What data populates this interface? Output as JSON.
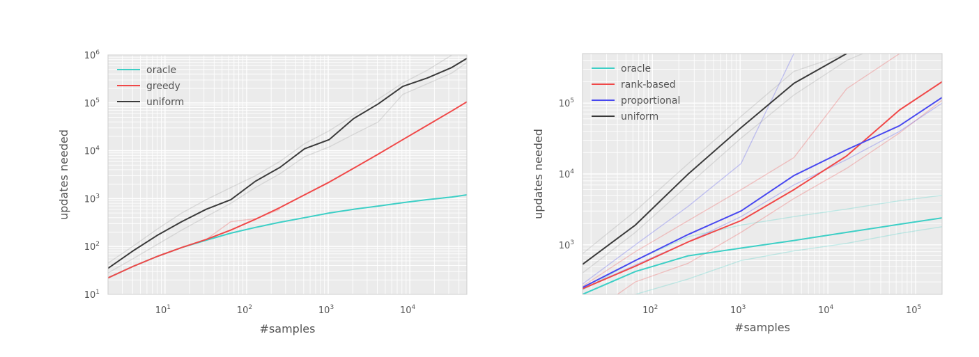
{
  "chart_data": [
    {
      "type": "line",
      "xlabel": "#samples",
      "ylabel": "updates needed",
      "x_scale": "log",
      "y_scale": "log",
      "xlim": [
        2,
        50000
      ],
      "ylim": [
        10,
        1000000
      ],
      "xticks": [
        10,
        100,
        1000,
        10000
      ],
      "yticks": [
        10,
        100,
        1000,
        10000,
        100000,
        1000000
      ],
      "grid": true,
      "legend": "top-left",
      "series": [
        {
          "name": "oracle",
          "color": "#3dcfc6",
          "style": "main",
          "x": [
            2,
            4,
            8,
            16,
            32,
            64,
            128,
            256,
            512,
            1024,
            2048,
            4096,
            8192,
            16384,
            32768,
            50000
          ],
          "y": [
            22,
            38,
            62,
            95,
            135,
            190,
            250,
            320,
            400,
            500,
            600,
            700,
            820,
            950,
            1080,
            1200
          ]
        },
        {
          "name": "greedy",
          "color": "#f04848",
          "style": "main",
          "x": [
            2,
            4,
            8,
            16,
            32,
            64,
            128,
            256,
            512,
            1024,
            2048,
            4096,
            8192,
            16384,
            32768,
            50000
          ],
          "y": [
            22,
            38,
            62,
            95,
            140,
            220,
            370,
            650,
            1200,
            2200,
            4300,
            8500,
            17000,
            34000,
            68000,
            105000
          ]
        },
        {
          "name": "",
          "color": "#f04848",
          "style": "faint",
          "x": [
            2,
            4,
            8,
            16,
            32,
            64,
            128,
            256
          ],
          "y": [
            22,
            38,
            62,
            95,
            140,
            330,
            380,
            600
          ]
        },
        {
          "name": "uniform",
          "color": "#3a3a3a",
          "style": "main",
          "x": [
            2,
            4,
            8,
            16,
            32,
            64,
            128,
            256,
            512,
            1024,
            2048,
            4096,
            8192,
            16384,
            32768,
            50000
          ],
          "y": [
            35,
            80,
            170,
            330,
            600,
            950,
            2300,
            4500,
            11000,
            17000,
            47000,
            95000,
            220000,
            330000,
            550000,
            850000
          ]
        },
        {
          "name": "",
          "color": "#9a9a9a",
          "style": "faint",
          "x": [
            2,
            4,
            8,
            16,
            32,
            64,
            128,
            256,
            512,
            1024,
            2048,
            4096,
            8192,
            16384,
            32768
          ],
          "y": [
            45,
            100,
            230,
            500,
            950,
            1700,
            3000,
            6000,
            14000,
            26000,
            55000,
            120000,
            260000,
            480000,
            1000000
          ]
        },
        {
          "name": "",
          "color": "#9a9a9a",
          "style": "faint",
          "x": [
            2,
            4,
            8,
            16,
            32,
            64,
            128,
            256,
            512,
            1024,
            2048,
            4096,
            8192,
            16384,
            32768,
            50000
          ],
          "y": [
            28,
            55,
            110,
            220,
            420,
            800,
            1700,
            3300,
            7500,
            12000,
            22000,
            40000,
            150000,
            250000,
            420000,
            700000
          ]
        }
      ]
    },
    {
      "type": "line",
      "xlabel": "#samples",
      "ylabel": "updates needed",
      "x_scale": "log",
      "y_scale": "log",
      "xlim": [
        16,
        200000
      ],
      "ylim": [
        200,
        500000
      ],
      "xticks": [
        100,
        1000,
        10000,
        100000
      ],
      "yticks": [
        1000,
        10000,
        100000
      ],
      "grid": true,
      "legend": "top-left",
      "series": [
        {
          "name": "oracle",
          "color": "#3dcfc6",
          "style": "main",
          "x": [
            16,
            64,
            256,
            1024,
            4096,
            16384,
            65536,
            200000
          ],
          "y": [
            200,
            420,
            700,
            900,
            1150,
            1500,
            1950,
            2400
          ]
        },
        {
          "name": "",
          "color": "#3dcfc6",
          "style": "faint",
          "x": [
            16,
            64,
            256,
            1024,
            4096,
            16384,
            65536,
            200000
          ],
          "y": [
            230,
            600,
            1300,
            1900,
            2500,
            3200,
            4200,
            5000
          ]
        },
        {
          "name": "",
          "color": "#3dcfc6",
          "style": "faint",
          "x": [
            64,
            256,
            1024,
            4096,
            16384,
            65536,
            200000
          ],
          "y": [
            200,
            330,
            600,
            820,
            1050,
            1450,
            1800
          ]
        },
        {
          "name": "rank-based",
          "color": "#f04848",
          "style": "main",
          "x": [
            16,
            64,
            256,
            1024,
            4096,
            16384,
            65536,
            200000
          ],
          "y": [
            240,
            500,
            1100,
            2200,
            6000,
            18000,
            80000,
            200000
          ]
        },
        {
          "name": "",
          "color": "#f04848",
          "style": "faint",
          "x": [
            16,
            64,
            256,
            1024,
            4096,
            16384,
            65536
          ],
          "y": [
            260,
            800,
            2200,
            6000,
            17000,
            160000,
            500000
          ]
        },
        {
          "name": "",
          "color": "#f04848",
          "style": "faint",
          "x": [
            40,
            64,
            256,
            1024,
            4096,
            16384,
            65536,
            200000
          ],
          "y": [
            200,
            300,
            550,
            1500,
            4500,
            12000,
            38000,
            110000
          ]
        },
        {
          "name": "proportional",
          "color": "#4848f0",
          "style": "main",
          "x": [
            16,
            64,
            256,
            1024,
            4096,
            16384,
            65536,
            200000
          ],
          "y": [
            250,
            600,
            1400,
            3000,
            9500,
            22000,
            48000,
            120000
          ]
        },
        {
          "name": "",
          "color": "#4848f0",
          "style": "faint",
          "x": [
            16,
            64,
            256,
            1024,
            4096
          ],
          "y": [
            280,
            1000,
            3500,
            14000,
            500000
          ]
        },
        {
          "name": "",
          "color": "#4848f0",
          "style": "faint",
          "x": [
            16,
            64,
            256,
            1024,
            4096,
            16384,
            65536,
            200000
          ],
          "y": [
            240,
            520,
            1100,
            2500,
            7000,
            16000,
            40000,
            100000
          ]
        },
        {
          "name": "uniform",
          "color": "#3a3a3a",
          "style": "main",
          "x": [
            16,
            64,
            256,
            1024,
            4096,
            16384
          ],
          "y": [
            530,
            1900,
            10000,
            45000,
            190000,
            500000
          ]
        },
        {
          "name": "",
          "color": "#9a9a9a",
          "style": "faint",
          "x": [
            16,
            64,
            256,
            1024,
            4096,
            16384,
            22000
          ],
          "y": [
            750,
            3000,
            14000,
            65000,
            280000,
            500000,
            500000
          ]
        },
        {
          "name": "",
          "color": "#9a9a9a",
          "style": "faint",
          "x": [
            16,
            64,
            256,
            1024,
            4096,
            16384,
            25000
          ],
          "y": [
            400,
            1500,
            7000,
            32000,
            130000,
            400000,
            500000
          ]
        }
      ]
    }
  ]
}
